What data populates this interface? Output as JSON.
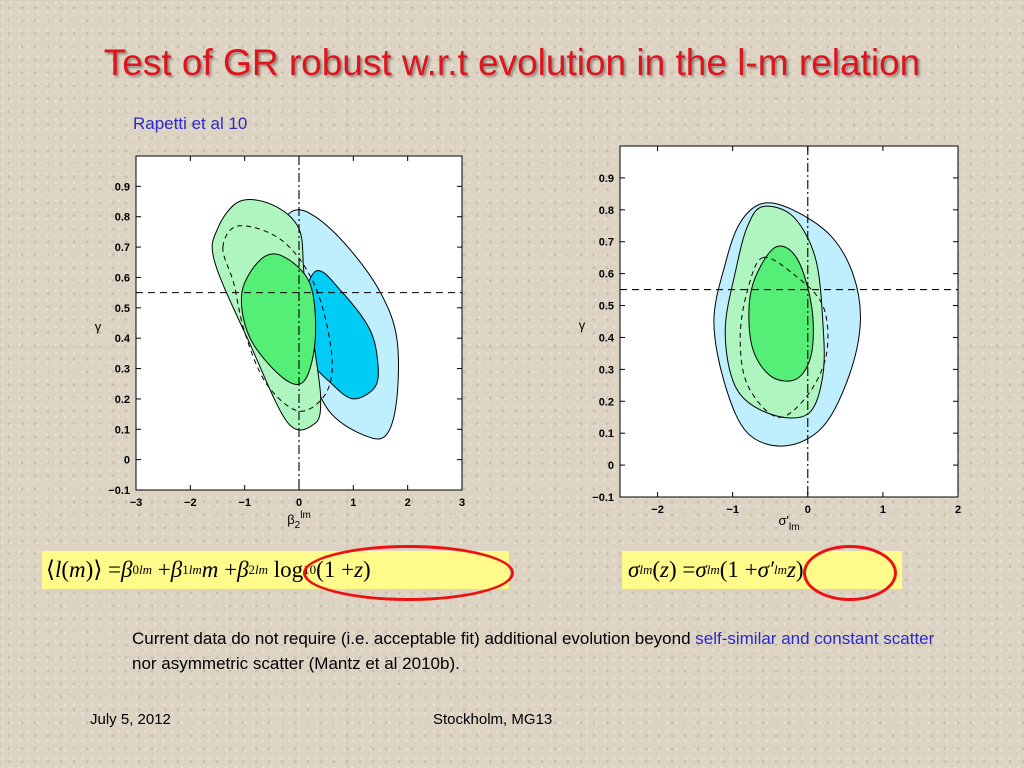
{
  "slide": {
    "title": "Test of GR robust w.r.t evolution in the l-m relation",
    "citation": "Rapetti et al 10",
    "body_text": {
      "part1": "Current data do not require (i.e. acceptable fit) additional evolution beyond ",
      "highlight": "self-similar and constant scatter",
      "part2": " nor asymmetric scatter (Mantz et al 2010b)."
    },
    "footer": {
      "date": "July 5, 2012",
      "location": "Stockholm, MG13"
    },
    "colors": {
      "title": "#e0141e",
      "highlight": "#2a2acc",
      "outer_blue": "#bfeeff",
      "inner_blue": "#00ccf5",
      "outer_green": "#aef5bf",
      "inner_green": "#55ee77",
      "equation_bg": "#fffb8a",
      "circle": "#e11111"
    }
  },
  "chart_data": [
    {
      "type": "contour",
      "xlabel": "β2lm",
      "ylabel": "γ",
      "xlim": [
        -3,
        3
      ],
      "ylim": [
        -0.1,
        1.0
      ],
      "xticks": [
        "−3",
        "−2",
        "−1",
        "0",
        "1",
        "2",
        "3"
      ],
      "yticks": [
        "−0.1",
        "0",
        "0.1",
        "0.2",
        "0.3",
        "0.4",
        "0.5",
        "0.6",
        "0.7",
        "0.8",
        "0.9"
      ],
      "reference_lines": {
        "x": 0,
        "y": 0.55
      },
      "regions": [
        {
          "name": "outer blue",
          "points": [
            [
              -0.1,
              0.82
            ],
            [
              0.3,
              0.8
            ],
            [
              0.9,
              0.7
            ],
            [
              1.5,
              0.55
            ],
            [
              1.8,
              0.4
            ],
            [
              1.8,
              0.2
            ],
            [
              1.6,
              0.08
            ],
            [
              1.2,
              0.08
            ],
            [
              0.6,
              0.15
            ],
            [
              0.2,
              0.28
            ],
            [
              -0.3,
              0.45
            ],
            [
              -0.5,
              0.62
            ],
            [
              -0.4,
              0.75
            ]
          ]
        },
        {
          "name": "inner blue",
          "points": [
            [
              0.3,
              0.62
            ],
            [
              0.8,
              0.55
            ],
            [
              1.3,
              0.43
            ],
            [
              1.45,
              0.32
            ],
            [
              1.4,
              0.24
            ],
            [
              1.0,
              0.2
            ],
            [
              0.6,
              0.25
            ],
            [
              0.2,
              0.33
            ],
            [
              0.0,
              0.45
            ]
          ]
        },
        {
          "name": "outer green",
          "points": [
            [
              -1.1,
              0.85
            ],
            [
              -0.5,
              0.84
            ],
            [
              0,
              0.76
            ],
            [
              0.1,
              0.6
            ],
            [
              0.3,
              0.35
            ],
            [
              0.4,
              0.2
            ],
            [
              0.3,
              0.12
            ],
            [
              -0.2,
              0.12
            ],
            [
              -0.9,
              0.38
            ],
            [
              -1.55,
              0.65
            ],
            [
              -1.5,
              0.76
            ]
          ]
        },
        {
          "name": "inner green",
          "points": [
            [
              -0.7,
              0.66
            ],
            [
              -0.3,
              0.67
            ],
            [
              0.2,
              0.58
            ],
            [
              0.3,
              0.4
            ],
            [
              0.1,
              0.26
            ],
            [
              -0.3,
              0.27
            ],
            [
              -0.9,
              0.4
            ],
            [
              -1.05,
              0.55
            ]
          ]
        }
      ],
      "dashed_contour": [
        [
          -1.4,
          0.7
        ],
        [
          -1.1,
          0.77
        ],
        [
          -0.3,
          0.72
        ],
        [
          0.3,
          0.57
        ],
        [
          0.6,
          0.35
        ],
        [
          0.5,
          0.22
        ],
        [
          0.0,
          0.16
        ],
        [
          -0.6,
          0.25
        ],
        [
          -1.0,
          0.42
        ],
        [
          -1.2,
          0.58
        ]
      ]
    },
    {
      "type": "contour",
      "xlabel": "σ'lm",
      "ylabel": "γ",
      "xlim": [
        -2.5,
        2
      ],
      "ylim": [
        -0.1,
        1.0
      ],
      "xticks": [
        "−2",
        "−1",
        "0",
        "1",
        "2"
      ],
      "yticks": [
        "−0.1",
        "0",
        "0.1",
        "0.2",
        "0.3",
        "0.4",
        "0.5",
        "0.6",
        "0.7",
        "0.8",
        "0.9"
      ],
      "reference_lines": {
        "x": 0,
        "y": 0.55
      },
      "regions": [
        {
          "name": "outer blue",
          "points": [
            [
              -0.6,
              0.82
            ],
            [
              -0.2,
              0.8
            ],
            [
              0.3,
              0.72
            ],
            [
              0.6,
              0.6
            ],
            [
              0.7,
              0.45
            ],
            [
              0.55,
              0.28
            ],
            [
              0.2,
              0.12
            ],
            [
              -0.3,
              0.06
            ],
            [
              -0.8,
              0.1
            ],
            [
              -1.1,
              0.25
            ],
            [
              -1.25,
              0.45
            ],
            [
              -1.1,
              0.63
            ],
            [
              -0.9,
              0.76
            ]
          ]
        },
        {
          "name": "inner blue",
          "points": [
            [
              -0.9,
              0.52
            ],
            [
              -0.7,
              0.52
            ],
            [
              -0.6,
              0.3
            ],
            [
              -0.6,
              0.2
            ],
            [
              -0.8,
              0.2
            ],
            [
              -1.0,
              0.3
            ],
            [
              -1.05,
              0.42
            ]
          ]
        },
        {
          "name": "outer green",
          "points": [
            [
              -0.6,
              0.81
            ],
            [
              -0.2,
              0.78
            ],
            [
              0.1,
              0.65
            ],
            [
              0.2,
              0.45
            ],
            [
              0.2,
              0.28
            ],
            [
              0.0,
              0.16
            ],
            [
              -0.5,
              0.16
            ],
            [
              -0.95,
              0.24
            ],
            [
              -1.1,
              0.42
            ],
            [
              -0.95,
              0.62
            ],
            [
              -0.8,
              0.75
            ]
          ]
        },
        {
          "name": "inner green",
          "points": [
            [
              -0.45,
              0.68
            ],
            [
              -0.15,
              0.65
            ],
            [
              0.05,
              0.5
            ],
            [
              0.05,
              0.35
            ],
            [
              -0.15,
              0.27
            ],
            [
              -0.5,
              0.28
            ],
            [
              -0.75,
              0.38
            ],
            [
              -0.75,
              0.55
            ]
          ]
        }
      ],
      "dashed_contour": [
        [
          -0.6,
          0.65
        ],
        [
          -0.2,
          0.6
        ],
        [
          0.2,
          0.5
        ],
        [
          0.25,
          0.35
        ],
        [
          0.0,
          0.22
        ],
        [
          -0.4,
          0.15
        ],
        [
          -0.8,
          0.25
        ],
        [
          -0.9,
          0.4
        ],
        [
          -0.8,
          0.55
        ]
      ]
    }
  ],
  "equations": {
    "left": "⟨l(m)⟩ = β0lm + β1lm m + β2lm log10(1 + z)",
    "right": "σlm(z) = σlm(1 + σ'lm z)"
  }
}
